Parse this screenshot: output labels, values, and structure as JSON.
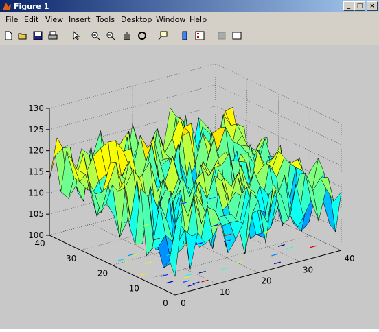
{
  "window": {
    "title": "Figure 1"
  },
  "menu": [
    "File",
    "Edit",
    "View",
    "Insert",
    "Tools",
    "Desktop",
    "Window",
    "Help"
  ],
  "axes": {
    "xlim": [
      0,
      40
    ],
    "ylim": [
      0,
      40
    ],
    "zlim": [
      100,
      130
    ],
    "xticks": [
      0,
      10,
      20,
      30,
      40
    ],
    "yticks": [
      0,
      10,
      20,
      30,
      40
    ],
    "zticks": [
      100,
      105,
      110,
      115,
      120,
      125,
      130
    ]
  }
}
